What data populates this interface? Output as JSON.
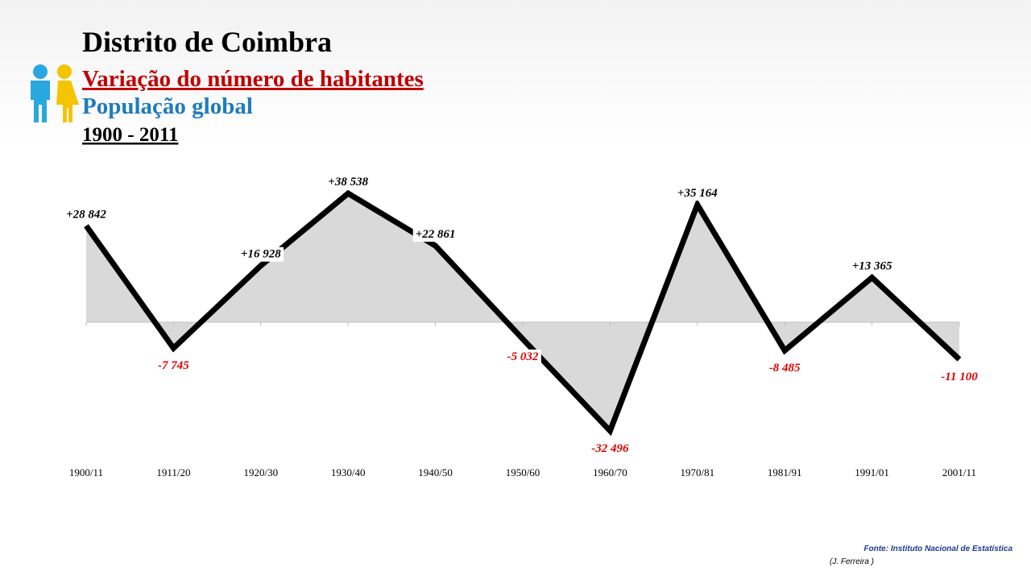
{
  "chart_data": {
    "type": "line",
    "title": "Distrito de Coimbra",
    "subtitle": "Variação do número de habitantes",
    "subtitle2": "População global",
    "period": "1900 - 2011",
    "source": "Fonte: Instituto Nacional de Estatística",
    "author": "(J. Ferreira )",
    "categories": [
      "1900/11",
      "1911/20",
      "1920/30",
      "1930/40",
      "1940/50",
      "1950/60",
      "1960/70",
      "1970/81",
      "1981/91",
      "1991/01",
      "2001/11"
    ],
    "values": [
      28842,
      -7745,
      16928,
      38538,
      22861,
      -5032,
      -32496,
      35164,
      -8485,
      13365,
      -11100
    ],
    "value_labels": [
      "+28 842",
      "-7 745",
      "+16 928",
      "+38 538",
      "+22 861",
      "-5 032",
      "-32 496",
      "+35 164",
      "-8 485",
      "+13 365",
      "-11 100"
    ],
    "color": "#000000",
    "area_color": "#d9d9d9",
    "positive_label_color": "#000000",
    "negative_label_color": "#e00000",
    "ylim": [
      -40000,
      50000
    ]
  }
}
